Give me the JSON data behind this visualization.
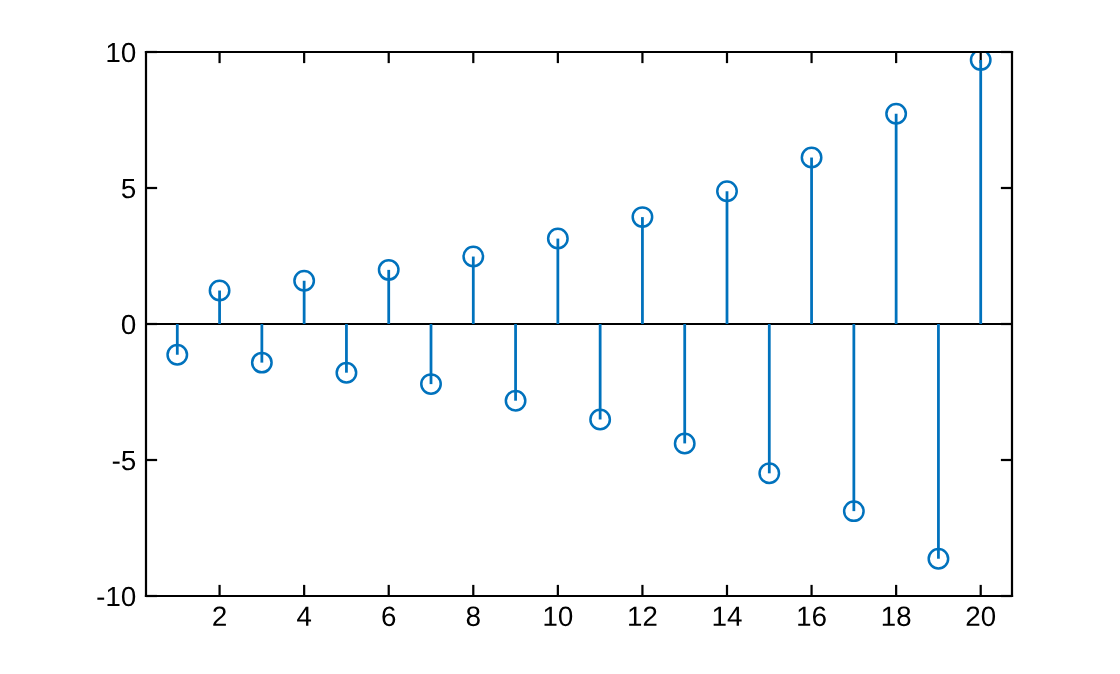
{
  "chart_data": {
    "type": "lollipop",
    "x": [
      1,
      2,
      3,
      4,
      5,
      6,
      7,
      8,
      9,
      10,
      11,
      12,
      13,
      14,
      15,
      16,
      17,
      18,
      19,
      20
    ],
    "series": [
      {
        "color": "#0072bd",
        "values": [
          -1.13,
          1.23,
          -1.42,
          1.59,
          -1.79,
          1.99,
          -2.21,
          2.48,
          -2.82,
          3.14,
          -3.51,
          3.93,
          -4.39,
          4.88,
          -5.49,
          6.12,
          -6.88,
          7.73,
          -8.63,
          9.71
        ]
      }
    ],
    "xlim": [
      0.26,
      20.74
    ],
    "xticks": [
      2,
      4,
      6,
      8,
      10,
      12,
      14,
      16,
      18,
      20
    ],
    "ylim": [
      -10,
      10
    ],
    "yticks": [
      -10,
      -5,
      0,
      5,
      10
    ],
    "ref_lines": [
      {
        "axis": "y",
        "value": 0,
        "color": "#000000"
      }
    ],
    "marker": "circle"
  }
}
